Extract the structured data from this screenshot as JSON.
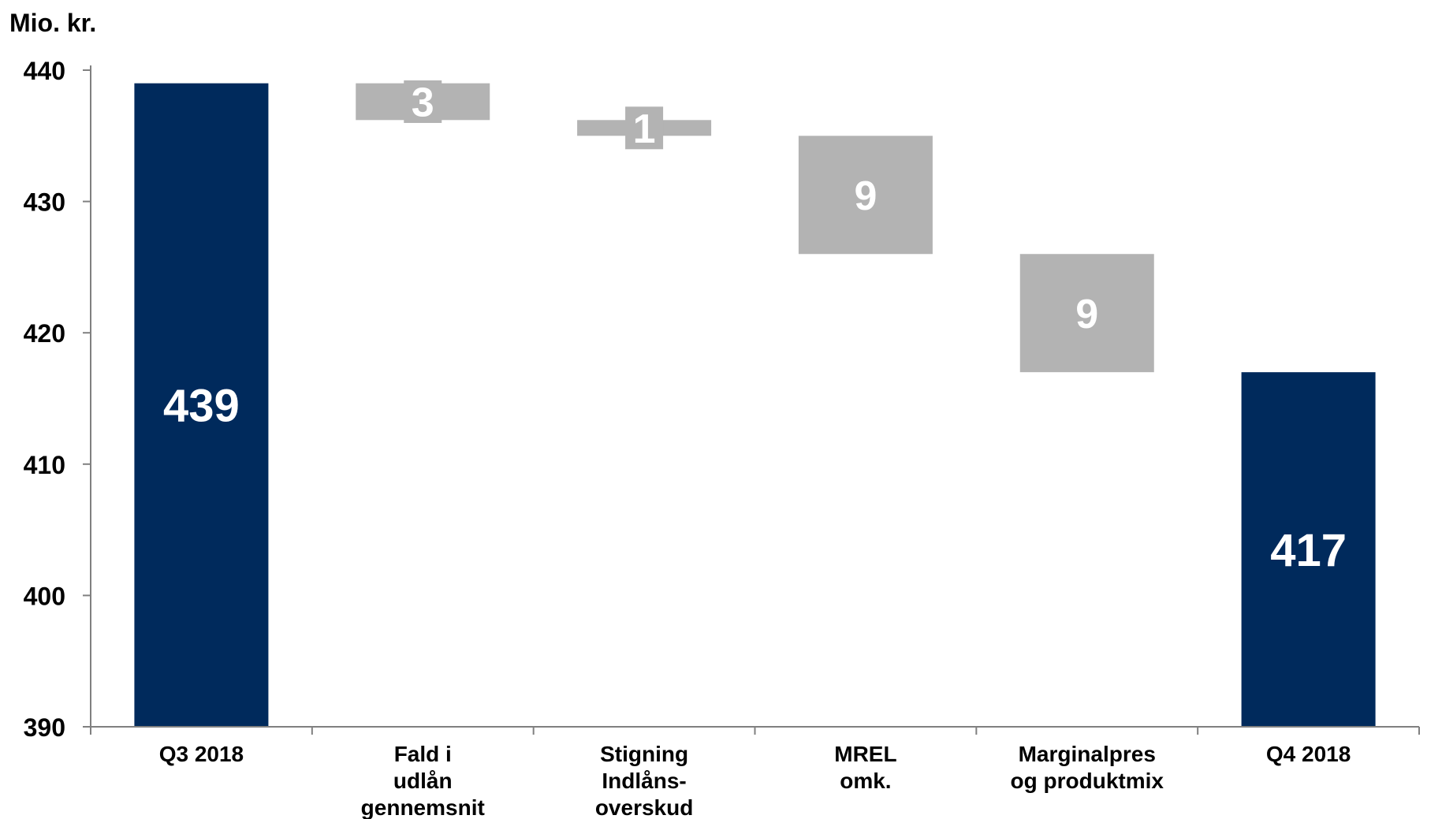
{
  "chart_data": {
    "type": "bar",
    "subtype": "waterfall",
    "unit_label": "Mio. kr.",
    "ylim": [
      390,
      440
    ],
    "yticks": [
      440,
      430,
      420,
      410,
      400,
      390
    ],
    "grid": false,
    "categories": [
      [
        "Q3 2018"
      ],
      [
        "Fald i",
        "udlån",
        "gennemsnit"
      ],
      [
        "Stigning",
        "Indlåns-",
        "overskud"
      ],
      [
        "MREL",
        "omk."
      ],
      [
        "Marginalpres",
        "og produktmix"
      ],
      [
        "Q4 2018"
      ]
    ],
    "bars": [
      {
        "kind": "total",
        "start": 390,
        "end": 439,
        "label": "439"
      },
      {
        "kind": "decrease",
        "start": 439,
        "end": 436.2,
        "label": "3"
      },
      {
        "kind": "decrease",
        "start": 436.2,
        "end": 435.0,
        "label": "1"
      },
      {
        "kind": "decrease",
        "start": 435.0,
        "end": 426.0,
        "label": "9"
      },
      {
        "kind": "decrease",
        "start": 426.0,
        "end": 417.0,
        "label": "9"
      },
      {
        "kind": "total",
        "start": 390,
        "end": 417,
        "label": "417"
      }
    ],
    "colors": {
      "total": "#002a5c",
      "change": "#b3b3b3",
      "axis": "#808080"
    }
  }
}
